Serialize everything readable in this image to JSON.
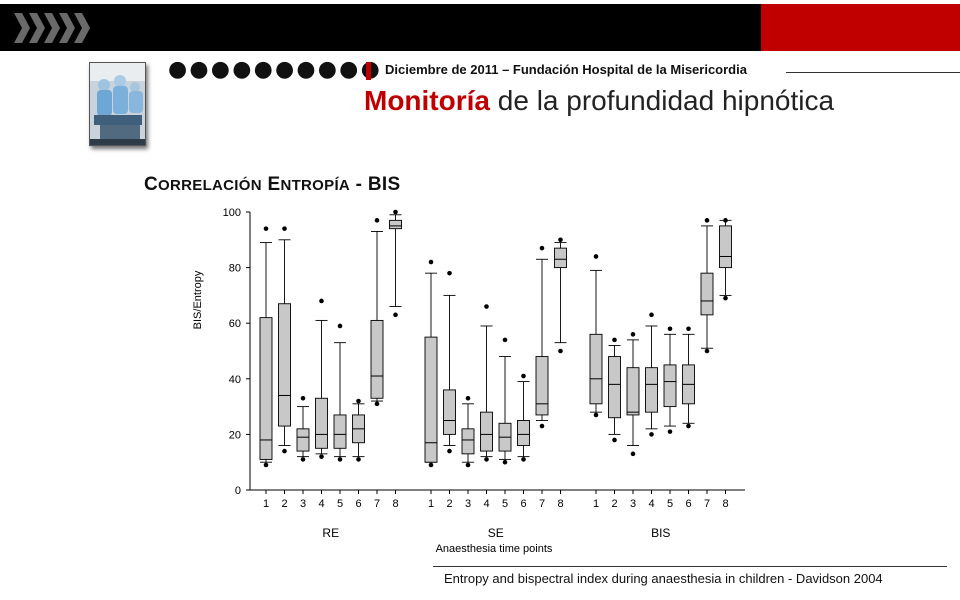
{
  "header": {
    "date_line": "Diciembre de 2011 – Fundación Hospital de la Misericordia",
    "title_highlight": "Monitoría",
    "title_rest": " de la profundidad hipnótica",
    "dots": "●●●●●●●●●●"
  },
  "subtitle": {
    "c1": "C",
    "w1": "ORRELACIÓN",
    "e1": "E",
    "w2": "NTROPÍA",
    "tail": " - BIS"
  },
  "caption": "Entropy and bispectral index during anaesthesia in children - Davidson 2004",
  "colors": {
    "accent_red": "#c00000",
    "box_fill": "#c8c8c8"
  },
  "chart_data": {
    "type": "box",
    "ylabel": "BIS/Entropy",
    "xlabel": "Anaesthesia time points",
    "ylim": [
      0,
      100
    ],
    "yticks": [
      0,
      20,
      40,
      60,
      80,
      100
    ],
    "groups": [
      {
        "name": "RE",
        "boxes": [
          {
            "x": "1",
            "min": 10,
            "q1": 11,
            "median": 18,
            "q3": 62,
            "max": 89,
            "outliers": [
              9,
              94
            ]
          },
          {
            "x": "2",
            "min": 16,
            "q1": 23,
            "median": 34,
            "q3": 67,
            "max": 90,
            "outliers": [
              14,
              94
            ]
          },
          {
            "x": "3",
            "min": 12,
            "q1": 14,
            "median": 19,
            "q3": 22,
            "max": 30,
            "outliers": [
              11,
              33
            ]
          },
          {
            "x": "4",
            "min": 13,
            "q1": 15,
            "median": 20,
            "q3": 33,
            "max": 61,
            "outliers": [
              12,
              68
            ]
          },
          {
            "x": "5",
            "min": 12,
            "q1": 15,
            "median": 20,
            "q3": 27,
            "max": 53,
            "outliers": [
              11,
              59
            ]
          },
          {
            "x": "6",
            "min": 12,
            "q1": 17,
            "median": 22,
            "q3": 27,
            "max": 31,
            "outliers": [
              11,
              32
            ]
          },
          {
            "x": "7",
            "min": 32,
            "q1": 33,
            "median": 41,
            "q3": 61,
            "max": 93,
            "outliers": [
              31,
              97
            ]
          },
          {
            "x": "8",
            "min": 66,
            "q1": 94,
            "median": 95,
            "q3": 97,
            "max": 99,
            "outliers": [
              63,
              100
            ]
          }
        ]
      },
      {
        "name": "SE",
        "boxes": [
          {
            "x": "1",
            "min": 10,
            "q1": 10,
            "median": 17,
            "q3": 55,
            "max": 78,
            "outliers": [
              9,
              82
            ]
          },
          {
            "x": "2",
            "min": 16,
            "q1": 20,
            "median": 25,
            "q3": 36,
            "max": 70,
            "outliers": [
              14,
              78
            ]
          },
          {
            "x": "3",
            "min": 10,
            "q1": 13,
            "median": 18,
            "q3": 22,
            "max": 31,
            "outliers": [
              9,
              33
            ]
          },
          {
            "x": "4",
            "min": 12,
            "q1": 14,
            "median": 20,
            "q3": 28,
            "max": 59,
            "outliers": [
              11,
              66
            ]
          },
          {
            "x": "5",
            "min": 11,
            "q1": 14,
            "median": 19,
            "q3": 24,
            "max": 48,
            "outliers": [
              10,
              54
            ]
          },
          {
            "x": "6",
            "min": 12,
            "q1": 16,
            "median": 20,
            "q3": 25,
            "max": 39,
            "outliers": [
              11,
              41
            ]
          },
          {
            "x": "7",
            "min": 25,
            "q1": 27,
            "median": 31,
            "q3": 48,
            "max": 83,
            "outliers": [
              23,
              87
            ]
          },
          {
            "x": "8",
            "min": 53,
            "q1": 80,
            "median": 83,
            "q3": 87,
            "max": 89,
            "outliers": [
              50,
              90
            ]
          }
        ]
      },
      {
        "name": "BIS",
        "boxes": [
          {
            "x": "1",
            "min": 28,
            "q1": 31,
            "median": 40,
            "q3": 56,
            "max": 79,
            "outliers": [
              27,
              84
            ]
          },
          {
            "x": "2",
            "min": 20,
            "q1": 26,
            "median": 38,
            "q3": 48,
            "max": 52,
            "outliers": [
              18,
              54
            ]
          },
          {
            "x": "3",
            "min": 16,
            "q1": 27,
            "median": 28,
            "q3": 44,
            "max": 54,
            "outliers": [
              13,
              56
            ]
          },
          {
            "x": "4",
            "min": 22,
            "q1": 28,
            "median": 38,
            "q3": 44,
            "max": 59,
            "outliers": [
              20,
              63
            ]
          },
          {
            "x": "5",
            "min": 23,
            "q1": 30,
            "median": 39,
            "q3": 45,
            "max": 56,
            "outliers": [
              21,
              58
            ]
          },
          {
            "x": "6",
            "min": 24,
            "q1": 31,
            "median": 38,
            "q3": 45,
            "max": 56,
            "outliers": [
              23,
              58
            ]
          },
          {
            "x": "7",
            "min": 51,
            "q1": 63,
            "median": 68,
            "q3": 78,
            "max": 95,
            "outliers": [
              50,
              97
            ]
          },
          {
            "x": "8",
            "min": 70,
            "q1": 80,
            "median": 84,
            "q3": 95,
            "max": 97,
            "outliers": [
              69,
              97
            ]
          }
        ]
      }
    ]
  }
}
